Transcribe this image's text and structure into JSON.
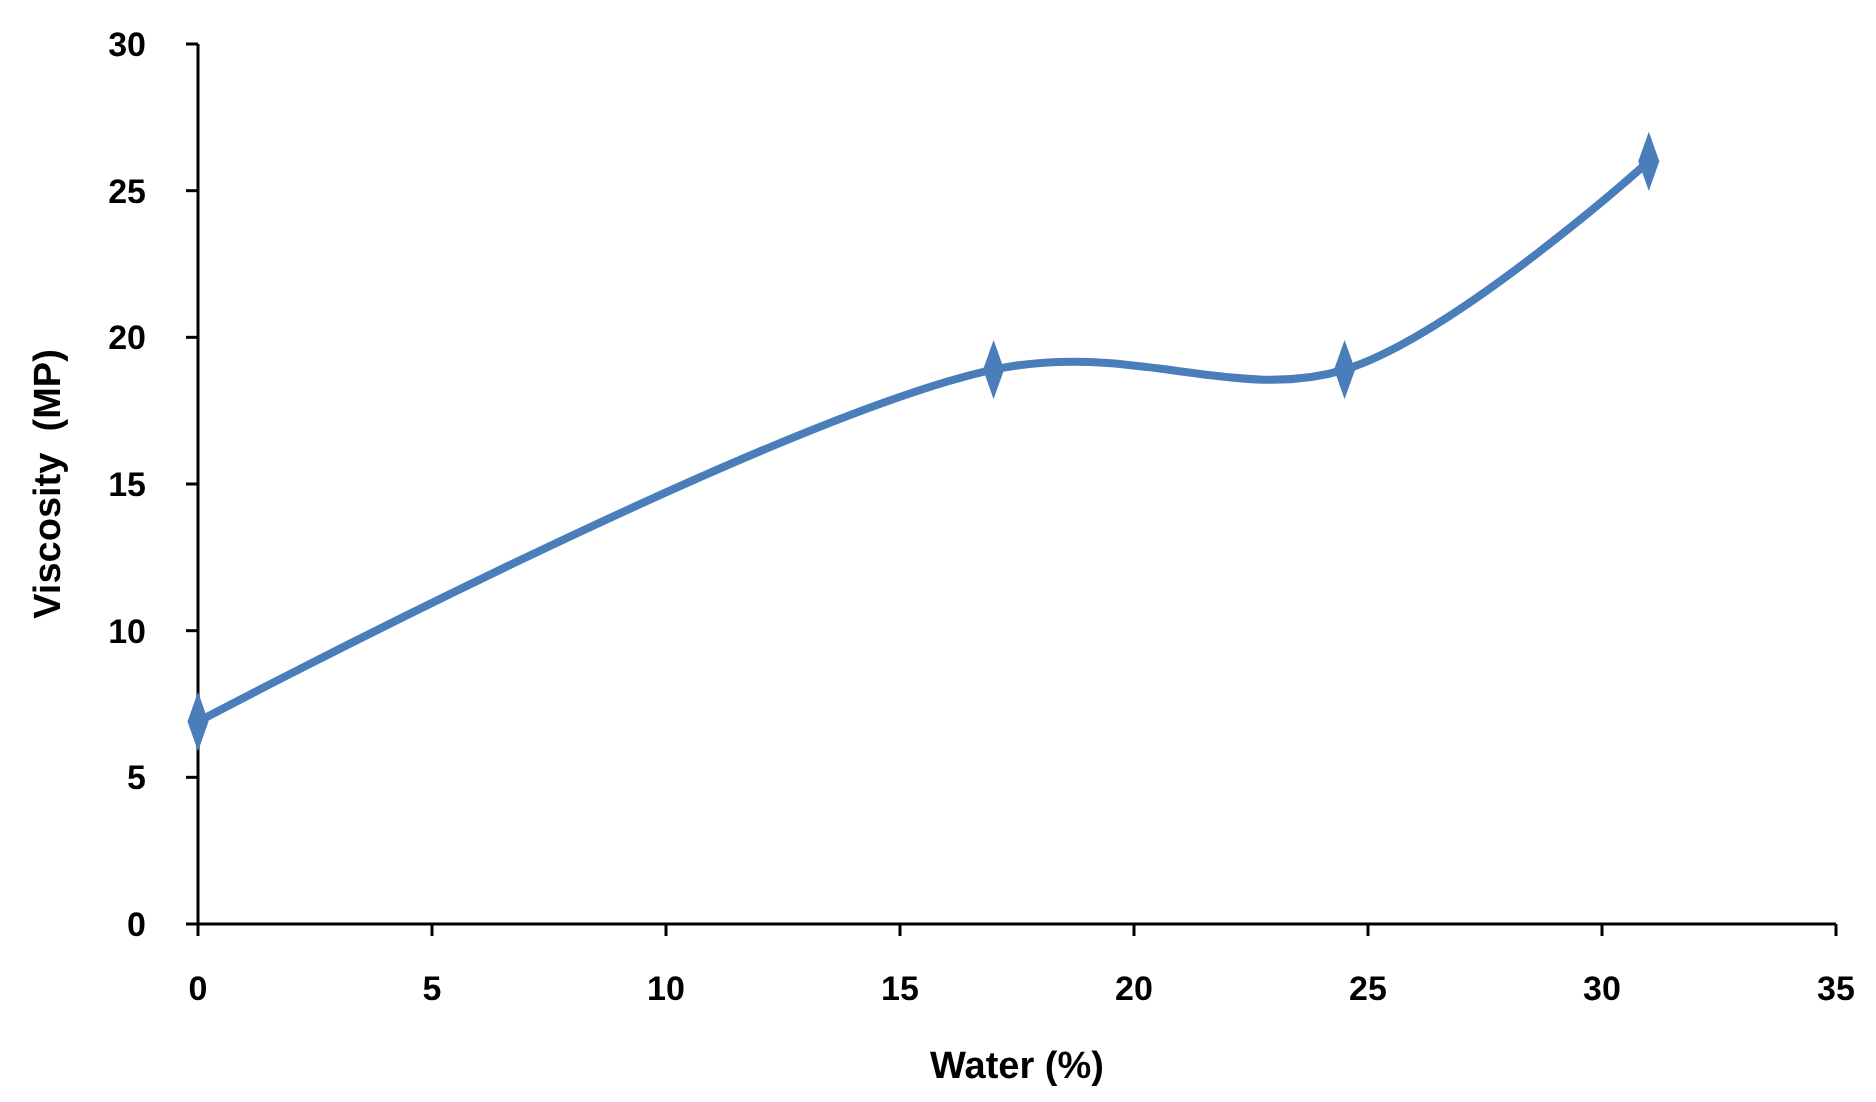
{
  "chart_data": {
    "type": "line",
    "xlabel": "Water (%)",
    "ylabel": "Viscosity  (MP)",
    "x": [
      0,
      17,
      24.5,
      31
    ],
    "series": [
      {
        "color": "#4a7ebb",
        "values": [
          6.9,
          18.9,
          18.9,
          26
        ]
      }
    ],
    "xlim": [
      0,
      35
    ],
    "xticks": [
      0,
      5,
      10,
      15,
      20,
      25,
      30,
      35
    ],
    "ylim": [
      0,
      30
    ],
    "yticks": [
      0,
      5,
      10,
      15,
      20,
      25,
      30
    ],
    "marker": "diamond",
    "line_style": "solid",
    "grid": false
  }
}
